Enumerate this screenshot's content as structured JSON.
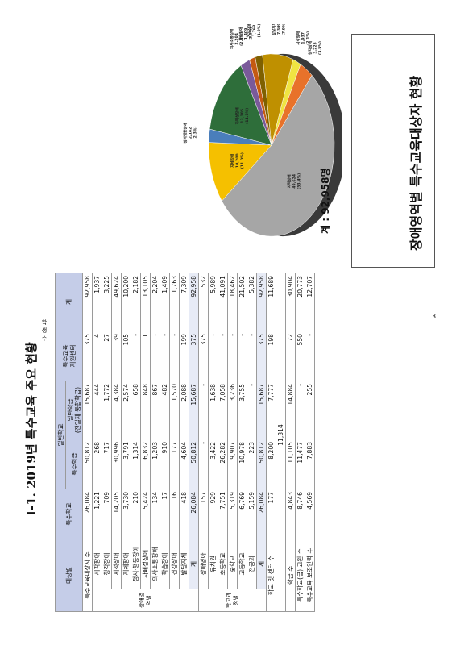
{
  "heading": "Ⅰ-1. 2019년 특수교육 주요 현황",
  "page_number": "3",
  "side_label": "학생수",
  "title_box": "장애영역별 특수교육대상자 현황",
  "total_note": "계 : 92,958명",
  "table": {
    "headers": {
      "category": "대상별",
      "special_school": "특수학교",
      "general_school": "일반학교",
      "special_class": "특수학급",
      "general_class": "일반학급\n(전일제 통합학급)",
      "support_center": "특수교육\n지원센터",
      "total": "계"
    },
    "student_count_label": "특수교육대상자 수",
    "student_count_row": [
      "26,084",
      "50,812",
      "15,687",
      "375",
      "92,958"
    ],
    "disability_group_label": "장애영역별",
    "disability_rows": [
      {
        "label": "시각장애",
        "values": [
          "1,221",
          "268",
          "444",
          "4",
          "1,937"
        ]
      },
      {
        "label": "청각장애",
        "values": [
          "709",
          "717",
          "1,772",
          "27",
          "3,225"
        ]
      },
      {
        "label": "지적장애",
        "values": [
          "14,205",
          "30,996",
          "4,384",
          "39",
          "49,624"
        ]
      },
      {
        "label": "지체장애",
        "values": [
          "3,730",
          "3,791",
          "2,574",
          "105",
          "10,200"
        ]
      },
      {
        "label": "정서·행동장애",
        "values": [
          "210",
          "1,314",
          "658",
          "-",
          "2,182"
        ]
      },
      {
        "label": "자폐성장애",
        "values": [
          "5,424",
          "6,832",
          "848",
          "1",
          "13,105"
        ]
      },
      {
        "label": "의사소통장애",
        "values": [
          "134",
          "1,203",
          "867",
          "-",
          "2,204"
        ]
      },
      {
        "label": "학습장애",
        "values": [
          "17",
          "910",
          "482",
          "-",
          "1,409"
        ]
      },
      {
        "label": "건강장애",
        "values": [
          "16",
          "177",
          "1,570",
          "-",
          "1,763"
        ]
      },
      {
        "label": "발달지체",
        "values": [
          "418",
          "4,604",
          "2,088",
          "199",
          "7,309"
        ]
      },
      {
        "label": "계",
        "values": [
          "26,084",
          "50,812",
          "15,687",
          "375",
          "92,958"
        ]
      }
    ],
    "level_group_label": "학교과정별",
    "level_rows": [
      {
        "label": "장애영아",
        "values": [
          "157",
          "-",
          "-",
          "375",
          "532"
        ]
      },
      {
        "label": "유치원",
        "values": [
          "929",
          "3,422",
          "1,638",
          "-",
          "5,989"
        ]
      },
      {
        "label": "초등학교",
        "values": [
          "7,751",
          "26,282",
          "7,058",
          "-",
          "41,091"
        ]
      },
      {
        "label": "중학교",
        "values": [
          "5,319",
          "9,907",
          "3,236",
          "-",
          "18,462"
        ]
      },
      {
        "label": "고등학교",
        "values": [
          "6,769",
          "10,978",
          "3,755",
          "-",
          "21,502"
        ]
      },
      {
        "label": "전공과",
        "values": [
          "5,159",
          "223",
          "-",
          "-",
          "5,382"
        ]
      },
      {
        "label": "계",
        "values": [
          "26,084",
          "50,812",
          "15,687",
          "375",
          "92,958"
        ]
      }
    ],
    "bottom_rows": [
      {
        "label": "학교 및 센터 수",
        "values": [
          "177",
          "8,200",
          "7,777",
          "198",
          "11,689"
        ],
        "sub": "11,314"
      },
      {
        "label": "학급 수",
        "values": [
          "4,843",
          "11,105",
          "14,884",
          "72",
          "30,904"
        ]
      },
      {
        "label": "특수학교(급) 교원 수",
        "values": [
          "8,746",
          "11,477",
          "-",
          "550",
          "20,773"
        ]
      },
      {
        "label": "특수교육 보조인력 수",
        "values": [
          "4,569",
          "7,883",
          "255",
          "-",
          "12,707"
        ]
      }
    ]
  },
  "chart_data": {
    "type": "pie",
    "title": "",
    "categories": [
      "시각장애",
      "청각장애",
      "지적장애",
      "지체장애",
      "정서행동장애",
      "자폐성장애",
      "의사소통장애",
      "학습장애",
      "건강장애",
      "발달지체"
    ],
    "values": [
      1937,
      3225,
      49624,
      10200,
      2182,
      13105,
      2204,
      1409,
      1763,
      7309
    ],
    "percent_labels": [
      "(2.1%)",
      "(3.5%)",
      "(53.4%)",
      "(11.0%)",
      "(2.3%)",
      "(14.1%)",
      "(2.4%)",
      "(1.5%)",
      "(1.9%)",
      "(7.9%)"
    ],
    "value_labels": [
      "1,937",
      "3,225",
      "49,624",
      "10,200",
      "2,182",
      "13,105",
      "2,204",
      "1,409",
      "1,763",
      "7,309"
    ],
    "colors": [
      "#f0e442",
      "#e8722a",
      "#a6a6a6",
      "#f5c000",
      "#4a7ebb",
      "#2e6e3a",
      "#7a5a9a",
      "#c55a11",
      "#7f6000",
      "#bf9000"
    ],
    "legend": "none"
  }
}
